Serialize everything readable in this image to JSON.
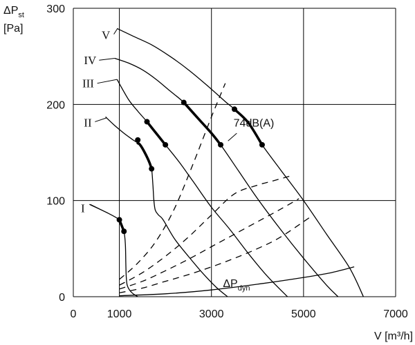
{
  "chart_data": {
    "type": "line",
    "title": "",
    "ylabel": {
      "main": "ΔP",
      "sub": "st",
      "unit": "[Pa]"
    },
    "xlabel": "V [m³/h]",
    "xlim": [
      0,
      7000
    ],
    "ylim": [
      0,
      300
    ],
    "xticks": [
      0,
      1000,
      3000,
      5000,
      7000
    ],
    "xtick_labels": [
      "0",
      "1000",
      "3000",
      "5000",
      "7000"
    ],
    "yticks": [
      0,
      100,
      200,
      300
    ],
    "ytick_labels": [
      "0",
      "100",
      "200",
      "300"
    ],
    "grid": {
      "x": [
        1000,
        3000,
        5000,
        7000
      ],
      "y": [
        0,
        100,
        200,
        300
      ]
    },
    "series": [
      {
        "name": "I",
        "style": "solid",
        "points": [
          [
            350,
            96
          ],
          [
            750,
            87
          ],
          [
            1000,
            80
          ],
          [
            1050,
            74
          ],
          [
            1100,
            68
          ],
          [
            1130,
            55
          ],
          [
            1140,
            35
          ],
          [
            1150,
            20
          ],
          [
            1170,
            12
          ],
          [
            1220,
            7
          ],
          [
            1300,
            3
          ],
          [
            1400,
            0
          ]
        ],
        "bold_range": [
          1000,
          1100
        ]
      },
      {
        "name": "II",
        "style": "solid",
        "points": [
          [
            700,
            187
          ],
          [
            900,
            178
          ],
          [
            1100,
            170
          ],
          [
            1300,
            163
          ],
          [
            1450,
            158
          ],
          [
            1550,
            150
          ],
          [
            1650,
            140
          ],
          [
            1700,
            133
          ],
          [
            1730,
            115
          ],
          [
            1750,
            100
          ],
          [
            1780,
            90
          ],
          [
            1850,
            85
          ],
          [
            1950,
            80
          ],
          [
            2200,
            60
          ],
          [
            2500,
            42
          ],
          [
            2800,
            25
          ],
          [
            3100,
            10
          ],
          [
            3350,
            0
          ]
        ],
        "bold_range": [
          1400,
          1700
        ]
      },
      {
        "name": "III",
        "style": "solid",
        "points": [
          [
            950,
            226
          ],
          [
            1200,
            205
          ],
          [
            1400,
            193
          ],
          [
            1600,
            182
          ],
          [
            1800,
            170
          ],
          [
            2000,
            158
          ],
          [
            2300,
            140
          ],
          [
            2600,
            120
          ],
          [
            3000,
            93
          ],
          [
            3400,
            70
          ],
          [
            3800,
            45
          ],
          [
            4200,
            22
          ],
          [
            4650,
            0
          ]
        ],
        "bold_range": [
          1600,
          2000
        ]
      },
      {
        "name": "IV",
        "style": "solid",
        "points": [
          [
            900,
            248
          ],
          [
            1200,
            243
          ],
          [
            1500,
            236
          ],
          [
            1800,
            226
          ],
          [
            2100,
            214
          ],
          [
            2400,
            202
          ],
          [
            2700,
            186
          ],
          [
            3000,
            170
          ],
          [
            3200,
            158
          ],
          [
            3600,
            130
          ],
          [
            4000,
            102
          ],
          [
            4500,
            70
          ],
          [
            5000,
            40
          ],
          [
            5500,
            12
          ],
          [
            5750,
            0
          ]
        ],
        "bold_range": [
          2400,
          3200
        ]
      },
      {
        "name": "V",
        "style": "solid",
        "points": [
          [
            950,
            279
          ],
          [
            1300,
            271
          ],
          [
            1700,
            262
          ],
          [
            2100,
            250
          ],
          [
            2500,
            236
          ],
          [
            2900,
            220
          ],
          [
            3300,
            203
          ],
          [
            3500,
            195
          ],
          [
            3800,
            181
          ],
          [
            4100,
            158
          ],
          [
            4500,
            132
          ],
          [
            5000,
            100
          ],
          [
            5500,
            65
          ],
          [
            6000,
            30
          ],
          [
            6300,
            0
          ]
        ],
        "bold_range": [
          3500,
          4100
        ]
      },
      {
        "name": "74dB(A)",
        "style": "dashed",
        "points": [
          [
            1000,
            18
          ],
          [
            1400,
            35
          ],
          [
            1800,
            58
          ],
          [
            2200,
            92
          ],
          [
            2600,
            138
          ],
          [
            3000,
            187
          ],
          [
            3300,
            222
          ]
        ]
      },
      {
        "name": "",
        "style": "dashed",
        "points": [
          [
            1000,
            12
          ],
          [
            1500,
            25
          ],
          [
            2000,
            42
          ],
          [
            2500,
            62
          ],
          [
            3000,
            85
          ],
          [
            3500,
            107
          ],
          [
            4000,
            116
          ],
          [
            4300,
            120
          ],
          [
            4750,
            126
          ]
        ]
      },
      {
        "name": "",
        "style": "dashed",
        "points": [
          [
            1000,
            8
          ],
          [
            1500,
            16
          ],
          [
            2000,
            27
          ],
          [
            2500,
            39
          ],
          [
            3000,
            52
          ],
          [
            3500,
            65
          ],
          [
            4000,
            78
          ],
          [
            4500,
            91
          ],
          [
            4900,
            102
          ]
        ]
      },
      {
        "name": "",
        "style": "dashed",
        "points": [
          [
            1000,
            4
          ],
          [
            1500,
            9
          ],
          [
            2000,
            16
          ],
          [
            2500,
            23
          ],
          [
            3000,
            31
          ],
          [
            3500,
            40
          ],
          [
            4000,
            50
          ],
          [
            4500,
            62
          ],
          [
            5150,
            83
          ]
        ]
      },
      {
        "name": "ΔPdyn",
        "style": "solid",
        "points": [
          [
            1000,
            1
          ],
          [
            2000,
            3
          ],
          [
            3000,
            7
          ],
          [
            4000,
            13
          ],
          [
            5000,
            20
          ],
          [
            5600,
            25
          ],
          [
            6100,
            31
          ]
        ]
      }
    ],
    "bold_markers": [
      [
        1000,
        80
      ],
      [
        1100,
        68
      ],
      [
        1400,
        163
      ],
      [
        1700,
        133
      ],
      [
        1600,
        182
      ],
      [
        2000,
        158
      ],
      [
        2400,
        202
      ],
      [
        3200,
        158
      ],
      [
        3500,
        195
      ],
      [
        4100,
        158
      ]
    ],
    "annotations": [
      {
        "text": "I",
        "kind": "roman",
        "x": 250,
        "y": 88
      },
      {
        "text": "II",
        "kind": "roman",
        "x": 400,
        "y": 177
      },
      {
        "text": "III",
        "kind": "roman",
        "x": 450,
        "y": 218
      },
      {
        "text": "IV",
        "kind": "roman",
        "x": 500,
        "y": 242
      },
      {
        "text": "V",
        "kind": "roman",
        "x": 800,
        "y": 268
      },
      {
        "text": "74dB(A)",
        "kind": "label",
        "x": 3480,
        "y": 177
      },
      {
        "text": "ΔP",
        "sub": "dyn",
        "kind": "label",
        "x": 3250,
        "y": 10
      }
    ]
  }
}
